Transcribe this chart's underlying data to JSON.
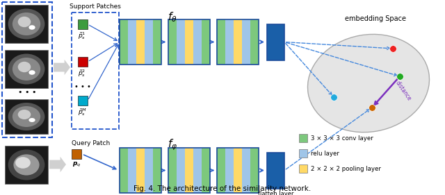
{
  "title": "Fig. 4. The architecture of the similarity network.",
  "bg_color": "#ffffff",
  "support_patches_label": "Support Patches",
  "query_patch_label": "Query Patch",
  "f_theta_label": "$f_\\theta$",
  "f_phi_label": "$f_\\varphi$",
  "embedding_label": "embedding Space",
  "flatten_label": "flatten layer",
  "distance_label": "distance",
  "legend_items": [
    {
      "color": "#7dc87d",
      "label": "3 × 3 × 3 conv layer"
    },
    {
      "color": "#9fc5e8",
      "label": "relu layer"
    },
    {
      "color": "#ffd966",
      "label": "2 × 2 × 2 pooling layer"
    }
  ],
  "patch_colors": {
    "green": "#3d9c3d",
    "red": "#cc0000",
    "cyan": "#00aacc",
    "orange": "#c06000"
  },
  "arrow_color": "#3366cc",
  "dashed_color": "#4488dd",
  "conv_color": "#7dc87d",
  "relu_color": "#9fc5e8",
  "pool_color": "#ffd966",
  "block_border": "#1a4a99",
  "flatten_color": "#1a5fa8",
  "support_box_color": "#2255cc",
  "distance_color": "#7b2fbe",
  "mri_outer_box": "#2255cc",
  "gray_arrow_color": "#c0c0c0"
}
